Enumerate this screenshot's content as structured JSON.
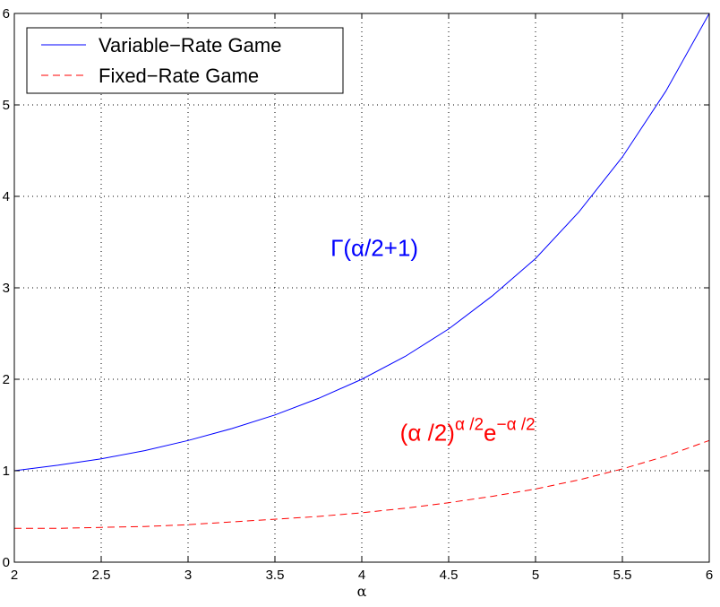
{
  "chart_data": {
    "type": "line",
    "xlabel": "α",
    "ylabel": "",
    "xlim": [
      2,
      6
    ],
    "ylim": [
      0,
      6
    ],
    "xticks": [
      2,
      2.5,
      3,
      3.5,
      4,
      4.5,
      5,
      5.5,
      6
    ],
    "yticks": [
      0,
      1,
      2,
      3,
      4,
      5,
      6
    ],
    "xtick_labels": [
      "2",
      "2.5",
      "3",
      "3.5",
      "4",
      "4.5",
      "5",
      "5.5",
      "6"
    ],
    "ytick_labels": [
      "0",
      "1",
      "2",
      "3",
      "4",
      "5",
      "6"
    ],
    "grid": true,
    "legend_position": "top-left",
    "x": [
      2,
      2.25,
      2.5,
      2.75,
      3,
      3.25,
      3.5,
      3.75,
      4,
      4.25,
      4.5,
      4.75,
      5,
      5.25,
      5.5,
      5.75,
      6
    ],
    "series": [
      {
        "name": "Variable−Rate Game",
        "color": "#0000ff",
        "style": "solid",
        "values": [
          1.0,
          1.06,
          1.13,
          1.22,
          1.33,
          1.46,
          1.61,
          1.79,
          2.0,
          2.25,
          2.55,
          2.91,
          3.32,
          3.83,
          4.43,
          5.15,
          6.0
        ]
      },
      {
        "name": "Fixed−Rate Game",
        "color": "#ff0000",
        "style": "dashed",
        "values": [
          0.37,
          0.37,
          0.38,
          0.39,
          0.41,
          0.44,
          0.47,
          0.5,
          0.54,
          0.59,
          0.65,
          0.72,
          0.8,
          0.9,
          1.02,
          1.16,
          1.33
        ]
      }
    ],
    "annotations": [
      {
        "id": "gamma",
        "x": 3.82,
        "y": 3.35,
        "color": "#0000ff",
        "parts": [
          "Γ(α/2+1)"
        ]
      },
      {
        "id": "fixed",
        "x": 4.22,
        "y": 1.33,
        "color": "#ff0000",
        "parts": [
          "(α /2)",
          "α /2",
          "e",
          "−α /2"
        ]
      }
    ]
  }
}
